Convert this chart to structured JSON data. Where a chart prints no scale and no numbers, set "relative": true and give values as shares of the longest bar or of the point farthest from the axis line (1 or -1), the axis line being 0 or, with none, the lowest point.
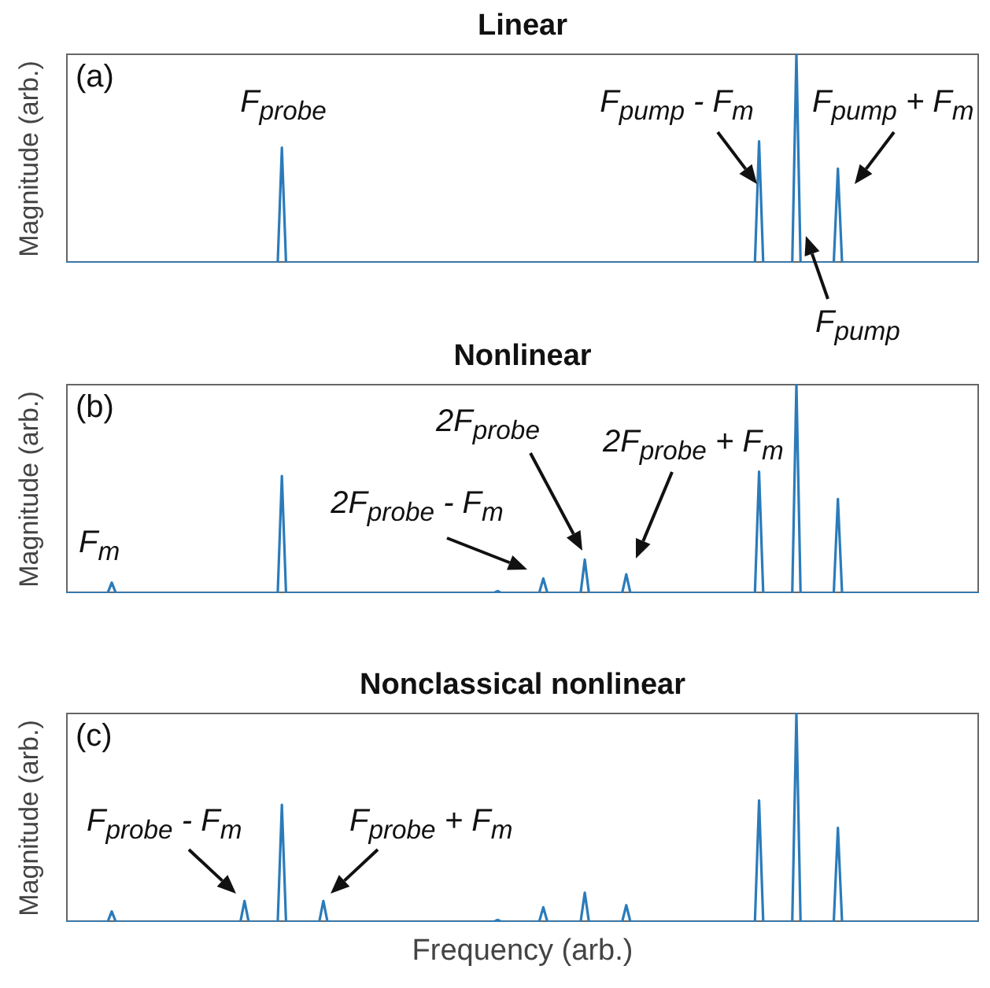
{
  "chart_data": [
    {
      "type": "line",
      "title": "Linear",
      "ylabel": "Magnitude (arb.)",
      "relative": true,
      "categories": [
        null,
        null,
        null,
        null,
        null,
        null,
        null,
        null,
        null,
        null,
        null,
        null,
        null,
        null,
        null,
        null,
        null,
        null,
        null,
        null,
        null,
        null,
        null,
        null,
        null,
        null,
        null,
        null,
        null,
        null,
        null,
        null,
        null,
        null,
        null,
        null,
        null,
        null,
        null,
        null,
        null,
        null,
        null,
        null,
        null,
        null,
        null,
        null,
        null,
        null,
        null,
        null,
        null,
        null,
        null,
        null,
        null,
        null,
        null,
        null,
        null,
        null,
        null,
        null,
        null,
        null,
        null,
        null,
        null,
        null,
        null,
        null,
        null,
        null,
        null,
        null,
        null,
        null,
        null,
        null,
        null,
        null,
        null,
        null,
        null,
        null,
        null,
        null,
        null,
        null,
        null,
        null,
        null,
        null,
        null,
        null,
        null,
        null,
        null,
        null,
        null,
        null,
        null,
        null,
        null,
        null,
        null,
        null,
        null,
        null,
        null,
        null,
        null,
        null,
        null,
        null,
        null,
        null,
        null,
        null,
        null,
        null,
        null,
        null,
        null,
        null,
        null,
        null,
        null,
        null,
        null,
        null,
        null,
        null,
        null,
        null,
        null,
        null,
        null,
        null,
        null,
        null,
        null,
        null,
        null,
        null,
        null,
        null,
        null,
        null,
        null,
        null,
        null,
        null,
        null,
        null,
        null,
        null,
        null,
        null,
        null,
        null,
        null,
        null,
        null,
        null,
        null,
        null,
        null,
        null,
        null,
        null,
        null,
        null,
        null,
        null,
        null,
        null,
        null,
        null,
        null,
        null,
        null,
        null,
        null,
        null,
        null,
        null,
        null,
        null,
        null,
        null,
        null,
        null,
        null,
        null,
        null,
        null,
        null,
        null,
        null,
        null,
        null,
        null,
        null,
        null,
        null,
        null,
        null,
        null,
        null,
        null,
        null,
        null,
        null,
        null,
        null,
        null,
        null,
        null,
        null
      ],
      "series": [
        {
          "color": "#2b7bba",
          "values": [
            0,
            0,
            0,
            0,
            0,
            0,
            0,
            0,
            0,
            0,
            0,
            0,
            0,
            0,
            0,
            0,
            0,
            0,
            0,
            0,
            0,
            0,
            0,
            0,
            0,
            0,
            0,
            0,
            0,
            0,
            0,
            0,
            0,
            0,
            0,
            0,
            0,
            0,
            0,
            0,
            0,
            0,
            0,
            0,
            0,
            0,
            0,
            0,
            0,
            0,
            0,
            0,
            0.55,
            0,
            0,
            0,
            0,
            0,
            0,
            0,
            0,
            0,
            0,
            0,
            0,
            0,
            0,
            0,
            0,
            0,
            0,
            0,
            0,
            0,
            0,
            0,
            0,
            0,
            0,
            0,
            0,
            0,
            0,
            0,
            0,
            0,
            0,
            0,
            0,
            0,
            0,
            0,
            0,
            0,
            0,
            0,
            0,
            0,
            0,
            0,
            0,
            0,
            0,
            0,
            0,
            0,
            0,
            0,
            0,
            0,
            0,
            0,
            0,
            0,
            0,
            0,
            0,
            0,
            0,
            0,
            0,
            0,
            0,
            0,
            0,
            0,
            0,
            0,
            0,
            0,
            0,
            0,
            0,
            0,
            0,
            0,
            0,
            0,
            0,
            0,
            0,
            0,
            0,
            0,
            0,
            0,
            0,
            0,
            0,
            0,
            0,
            0,
            0,
            0,
            0,
            0,
            0,
            0,
            0,
            0,
            0,
            0,
            0,
            0,
            0,
            0,
            0,
            0.58,
            0,
            0,
            0,
            0,
            0,
            0,
            0,
            0,
            1,
            0,
            0,
            0,
            0,
            0,
            0,
            0,
            0,
            0,
            0.45,
            0,
            0,
            0,
            0,
            0,
            0,
            0,
            0,
            0,
            0,
            0,
            0,
            0,
            0,
            0,
            0,
            0,
            0,
            0,
            0,
            0,
            0,
            0,
            0,
            0,
            0,
            0,
            0,
            0,
            0,
            0,
            0,
            0,
            0
          ]
        }
      ],
      "annotations": [
        "(a)",
        "F$_{probe}$",
        "F$_{pump}$ - F$_{m}$",
        "F$_{pump}$ + F$_{m}$",
        "F$_{pump}$"
      ]
    },
    {
      "type": "line",
      "title": "Nonlinear",
      "ylabel": "Magnitude (arb.)",
      "relative": true,
      "categories": [
        null,
        null,
        null,
        null,
        null,
        null,
        null,
        null,
        null,
        null,
        null,
        null,
        null,
        null,
        null,
        null,
        null,
        null,
        null,
        null,
        null,
        null,
        null,
        null,
        null,
        null,
        null,
        null,
        null,
        null,
        null,
        null,
        null,
        null,
        null,
        null,
        null,
        null,
        null,
        null,
        null,
        null,
        null,
        null,
        null,
        null,
        null,
        null,
        null,
        null,
        null,
        null,
        null,
        null,
        null,
        null,
        null,
        null,
        null,
        null,
        null,
        null,
        null,
        null,
        null,
        null,
        null,
        null,
        null,
        null,
        null,
        null,
        null,
        null,
        null,
        null,
        null,
        null,
        null,
        null,
        null,
        null,
        null,
        null,
        null,
        null,
        null,
        null,
        null,
        null,
        null,
        null,
        null,
        null,
        null,
        null,
        null,
        null,
        null,
        null,
        null,
        null,
        null,
        null,
        null,
        null,
        null,
        null,
        null,
        null,
        null,
        null,
        null,
        null,
        null,
        null,
        null,
        null,
        null,
        null,
        null,
        null,
        null,
        null,
        null,
        null,
        null,
        null,
        null,
        null,
        null,
        null,
        null,
        null,
        null,
        null,
        null,
        null,
        null,
        null,
        null,
        null,
        null,
        null,
        null,
        null,
        null,
        null,
        null,
        null,
        null,
        null,
        null,
        null,
        null,
        null,
        null,
        null,
        null,
        null,
        null,
        null,
        null,
        null,
        null,
        null,
        null,
        null,
        null,
        null,
        null,
        null,
        null,
        null,
        null,
        null,
        null,
        null,
        null,
        null,
        null,
        null,
        null,
        null,
        null,
        null,
        null,
        null,
        null,
        null,
        null,
        null,
        null,
        null,
        null,
        null,
        null,
        null,
        null,
        null,
        null,
        null,
        null,
        null,
        null,
        null,
        null,
        null,
        null,
        null,
        null,
        null,
        null,
        null,
        null,
        null,
        null,
        null,
        null,
        null,
        null
      ],
      "series": [
        {
          "color": "#2b7bba",
          "values": [
            0,
            0,
            0,
            0,
            0,
            0,
            0,
            0,
            0,
            0,
            0,
            0.05,
            0,
            0,
            0,
            0,
            0,
            0,
            0,
            0,
            0,
            0,
            0,
            0,
            0,
            0,
            0,
            0,
            0,
            0,
            0,
            0,
            0,
            0,
            0,
            0,
            0,
            0,
            0,
            0,
            0,
            0,
            0,
            0,
            0,
            0,
            0,
            0,
            0,
            0,
            0,
            0,
            0.56,
            0,
            0,
            0,
            0,
            0,
            0,
            0,
            0,
            0,
            0,
            0,
            0,
            0,
            0,
            0,
            0,
            0,
            0,
            0,
            0,
            0,
            0,
            0,
            0,
            0,
            0,
            0,
            0,
            0,
            0,
            0,
            0,
            0,
            0,
            0,
            0,
            0,
            0,
            0,
            0,
            0,
            0,
            0,
            0,
            0,
            0,
            0,
            0,
            0,
            0,
            0,
            0.01,
            0,
            0,
            0,
            0,
            0,
            0,
            0,
            0,
            0,
            0,
            0.07,
            0,
            0,
            0,
            0,
            0,
            0,
            0,
            0,
            0,
            0.16,
            0,
            0,
            0,
            0,
            0,
            0,
            0,
            0,
            0,
            0.09,
            0,
            0,
            0,
            0,
            0,
            0,
            0,
            0,
            0,
            0,
            0,
            0,
            0,
            0,
            0,
            0,
            0,
            0,
            0,
            0,
            0,
            0,
            0,
            0,
            0,
            0,
            0,
            0,
            0,
            0,
            0,
            0.58,
            0,
            0,
            0,
            0,
            0,
            0,
            0,
            0,
            1,
            0,
            0,
            0,
            0,
            0,
            0,
            0,
            0,
            0,
            0.45,
            0,
            0,
            0,
            0,
            0,
            0,
            0,
            0,
            0,
            0,
            0,
            0,
            0,
            0,
            0,
            0,
            0,
            0,
            0,
            0,
            0,
            0,
            0,
            0,
            0,
            0,
            0,
            0,
            0,
            0,
            0,
            0,
            0,
            0
          ]
        }
      ],
      "annotations": [
        "(b)",
        "F$_{m}$",
        "2F$_{probe}$ - F$_{m}$",
        "2F$_{probe}$",
        "2F$_{probe}$ + F$_{m}$"
      ]
    },
    {
      "type": "line",
      "title": "Nonclassical nonlinear",
      "ylabel": "Magnitude (arb.)",
      "xlabel": "Frequency (arb.)",
      "relative": true,
      "categories": [
        null,
        null,
        null,
        null,
        null,
        null,
        null,
        null,
        null,
        null,
        null,
        null,
        null,
        null,
        null,
        null,
        null,
        null,
        null,
        null,
        null,
        null,
        null,
        null,
        null,
        null,
        null,
        null,
        null,
        null,
        null,
        null,
        null,
        null,
        null,
        null,
        null,
        null,
        null,
        null,
        null,
        null,
        null,
        null,
        null,
        null,
        null,
        null,
        null,
        null,
        null,
        null,
        null,
        null,
        null,
        null,
        null,
        null,
        null,
        null,
        null,
        null,
        null,
        null,
        null,
        null,
        null,
        null,
        null,
        null,
        null,
        null,
        null,
        null,
        null,
        null,
        null,
        null,
        null,
        null,
        null,
        null,
        null,
        null,
        null,
        null,
        null,
        null,
        null,
        null,
        null,
        null,
        null,
        null,
        null,
        null,
        null,
        null,
        null,
        null,
        null,
        null,
        null,
        null,
        null,
        null,
        null,
        null,
        null,
        null,
        null,
        null,
        null,
        null,
        null,
        null,
        null,
        null,
        null,
        null,
        null,
        null,
        null,
        null,
        null,
        null,
        null,
        null,
        null,
        null,
        null,
        null,
        null,
        null,
        null,
        null,
        null,
        null,
        null,
        null,
        null,
        null,
        null,
        null,
        null,
        null,
        null,
        null,
        null,
        null,
        null,
        null,
        null,
        null,
        null,
        null,
        null,
        null,
        null,
        null,
        null,
        null,
        null,
        null,
        null,
        null,
        null,
        null,
        null,
        null,
        null,
        null,
        null,
        null,
        null,
        null,
        null,
        null,
        null,
        null,
        null,
        null,
        null,
        null,
        null,
        null,
        null,
        null,
        null,
        null,
        null,
        null,
        null,
        null,
        null,
        null,
        null,
        null,
        null,
        null,
        null,
        null,
        null,
        null,
        null,
        null,
        null,
        null,
        null,
        null,
        null,
        null,
        null,
        null,
        null,
        null,
        null,
        null,
        null,
        null,
        null
      ],
      "series": [
        {
          "color": "#2b7bba",
          "values": [
            0,
            0,
            0,
            0,
            0,
            0,
            0,
            0,
            0,
            0,
            0,
            0.05,
            0,
            0,
            0,
            0,
            0,
            0,
            0,
            0,
            0,
            0,
            0,
            0,
            0,
            0,
            0,
            0,
            0,
            0,
            0,
            0,
            0,
            0,
            0,
            0,
            0,
            0,
            0,
            0,
            0,
            0,
            0,
            0.1,
            0,
            0,
            0,
            0,
            0,
            0,
            0,
            0,
            0.56,
            0,
            0,
            0,
            0,
            0,
            0,
            0,
            0,
            0,
            0.1,
            0,
            0,
            0,
            0,
            0,
            0,
            0,
            0,
            0,
            0,
            0,
            0,
            0,
            0,
            0,
            0,
            0,
            0,
            0,
            0,
            0,
            0,
            0,
            0,
            0,
            0,
            0,
            0,
            0,
            0,
            0,
            0,
            0,
            0,
            0,
            0,
            0,
            0,
            0,
            0,
            0,
            0.01,
            0,
            0,
            0,
            0,
            0,
            0,
            0,
            0,
            0,
            0,
            0.07,
            0,
            0,
            0,
            0,
            0,
            0,
            0,
            0,
            0,
            0.14,
            0,
            0,
            0,
            0,
            0,
            0,
            0,
            0,
            0,
            0.08,
            0,
            0,
            0,
            0,
            0,
            0,
            0,
            0,
            0,
            0,
            0,
            0,
            0,
            0,
            0,
            0,
            0,
            0,
            0,
            0,
            0,
            0,
            0,
            0,
            0,
            0,
            0,
            0,
            0,
            0,
            0,
            0.58,
            0,
            0,
            0,
            0,
            0,
            0,
            0,
            0,
            1,
            0,
            0,
            0,
            0,
            0,
            0,
            0,
            0,
            0,
            0.45,
            0,
            0,
            0,
            0,
            0,
            0,
            0,
            0,
            0,
            0,
            0,
            0,
            0,
            0,
            0,
            0,
            0,
            0,
            0,
            0,
            0,
            0,
            0,
            0,
            0,
            0,
            0,
            0,
            0,
            0,
            0,
            0,
            0,
            0
          ]
        }
      ],
      "annotations": [
        "(c)",
        "F$_{probe}$ - F$_{m}$",
        "F$_{probe}$ + F$_{m}$"
      ]
    }
  ]
}
